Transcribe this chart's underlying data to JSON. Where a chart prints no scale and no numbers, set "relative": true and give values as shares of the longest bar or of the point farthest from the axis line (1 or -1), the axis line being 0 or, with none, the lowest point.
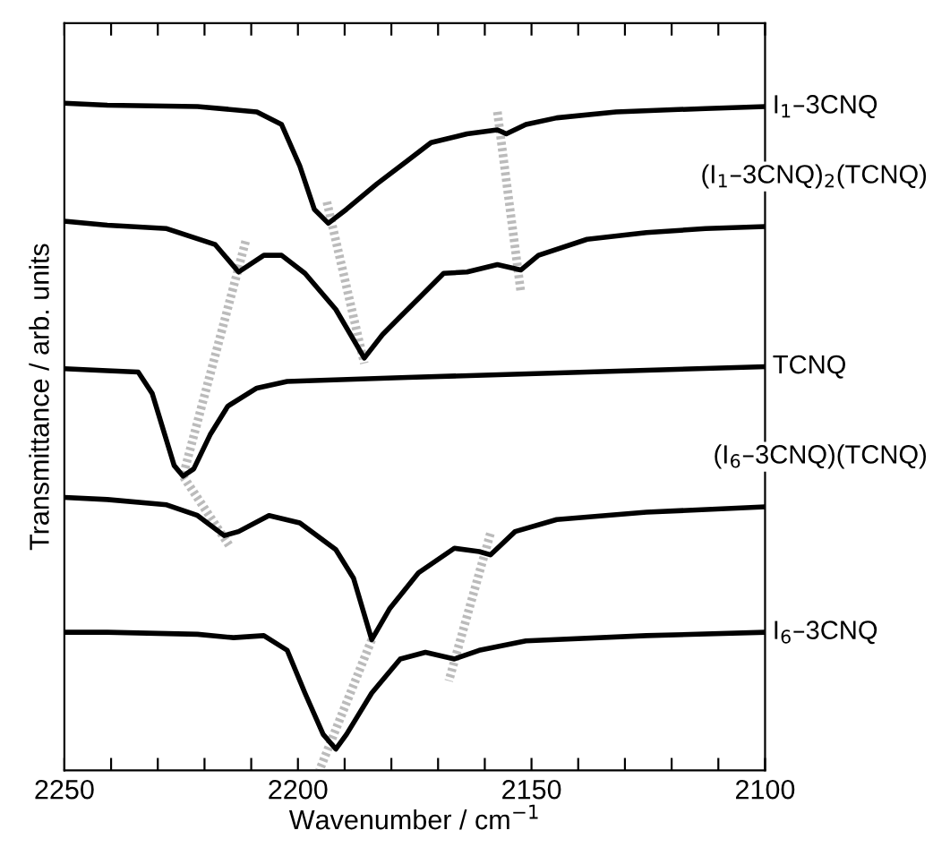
{
  "chart_data": {
    "type": "line",
    "relative": true,
    "xlabel": "Wavenumber / cm$^{−1}$",
    "ylabel": "Transmittance / arb. units",
    "xlim": [
      2250,
      2100
    ],
    "xticks": [
      2250,
      {
        "value": 2240,
        "label": null
      },
      {
        "value": 2230,
        "label": null
      },
      {
        "value": 2220,
        "label": null
      },
      {
        "value": 2210,
        "label": null
      },
      2200,
      {
        "value": 2190,
        "label": null
      },
      {
        "value": 2180,
        "label": null
      },
      {
        "value": 2170,
        "label": null
      },
      {
        "value": 2160,
        "label": null
      },
      2150,
      {
        "value": 2140,
        "label": null
      },
      {
        "value": 2130,
        "label": null
      },
      {
        "value": 2120,
        "label": null
      },
      {
        "value": 2110,
        "label": null
      },
      2100
    ],
    "tick_labels": "x",
    "grid": false,
    "marker": "none",
    "line_style": "solid",
    "series": [
      {
        "name": "I$_{1}$–3CNQ",
        "color": "#000000",
        "x": [
          2250,
          2240.8,
          2221.5,
          2208.8,
          2203.5,
          2199.6,
          2196.5,
          2193.5,
          2189.6,
          2183.1,
          2176.5,
          2171.5,
          2163.8,
          2157.3,
          2155.4,
          2151.2,
          2144.6,
          2131.9,
          2112.7,
          2100
        ],
        "values": [
          1.0,
          0.997,
          0.995,
          0.987,
          0.968,
          0.906,
          0.841,
          0.82,
          0.841,
          0.879,
          0.914,
          0.941,
          0.954,
          0.96,
          0.954,
          0.968,
          0.978,
          0.987,
          0.992,
          0.995
        ]
      },
      {
        "name": "(I$_{1}$–3CNQ)$_{2}$(TCNQ)",
        "color": "#000000",
        "x": [
          2250,
          2240.8,
          2228.1,
          2217.7,
          2212.7,
          2207.3,
          2203.5,
          2198.5,
          2191.9,
          2185.8,
          2181.9,
          2178.1,
          2174.2,
          2168.8,
          2163.8,
          2157.3,
          2152.3,
          2148.5,
          2138.1,
          2125.4,
          2112.7,
          2100
        ],
        "values": [
          0.823,
          0.817,
          0.812,
          0.788,
          0.747,
          0.772,
          0.772,
          0.745,
          0.691,
          0.618,
          0.653,
          0.68,
          0.707,
          0.745,
          0.747,
          0.758,
          0.75,
          0.772,
          0.796,
          0.806,
          0.812,
          0.815
        ]
      },
      {
        "name": "TCNQ",
        "color": "#000000",
        "x": [
          2250,
          2240.8,
          2234.2,
          2231.2,
          2228.5,
          2226.5,
          2224.6,
          2222.3,
          2218.8,
          2215,
          2208.8,
          2202.3,
          2176.5,
          2138.1,
          2100
        ],
        "values": [
          0.602,
          0.599,
          0.597,
          0.565,
          0.503,
          0.457,
          0.441,
          0.452,
          0.503,
          0.546,
          0.573,
          0.583,
          0.589,
          0.597,
          0.605
        ]
      },
      {
        "name": "(I$_{6}$–3CNQ)(TCNQ)",
        "color": "#000000",
        "x": [
          2250,
          2240.8,
          2228.1,
          2221.5,
          2215.8,
          2212.7,
          2206.2,
          2199.6,
          2191.9,
          2188.1,
          2184.2,
          2180.4,
          2174.2,
          2166.5,
          2161.2,
          2158.8,
          2153.5,
          2144.6,
          2125.4,
          2100
        ],
        "values": [
          0.409,
          0.406,
          0.398,
          0.382,
          0.352,
          0.358,
          0.382,
          0.371,
          0.331,
          0.288,
          0.196,
          0.242,
          0.296,
          0.333,
          0.328,
          0.323,
          0.358,
          0.376,
          0.387,
          0.395
        ]
      },
      {
        "name": "I$_{6}$–3CNQ",
        "color": "#000000",
        "x": [
          2250,
          2240.8,
          2221.5,
          2213.8,
          2207.3,
          2202.3,
          2198.5,
          2194.6,
          2191.9,
          2189.6,
          2184.2,
          2178.1,
          2172.7,
          2166.5,
          2161.2,
          2151.2,
          2125.4,
          2100
        ],
        "values": [
          0.207,
          0.207,
          0.204,
          0.199,
          0.202,
          0.18,
          0.116,
          0.054,
          0.032,
          0.054,
          0.116,
          0.167,
          0.177,
          0.167,
          0.18,
          0.194,
          0.202,
          0.207
        ]
      },
      {
        "color": "#bbbbbb",
        "line_style": "dotted",
        "x": [
          2193.8,
          2185.8
        ],
        "values": [
          0.852,
          0.61
        ]
      },
      {
        "color": "#bbbbbb",
        "line_style": "dotted",
        "x": [
          2157.3,
          2152.3
        ],
        "values": [
          0.987,
          0.718
        ]
      },
      {
        "color": "#bbbbbb",
        "line_style": "dotted",
        "x": [
          2211.2,
          2224.6,
          2214.6
        ],
        "values": [
          0.793,
          0.441,
          0.336
        ]
      },
      {
        "color": "#bbbbbb",
        "line_style": "dotted",
        "x": [
          2158.8,
          2167.7
        ],
        "values": [
          0.355,
          0.134
        ]
      },
      {
        "color": "#bbbbbb",
        "line_style": "dotted",
        "x": [
          2184.2,
          2195.4
        ],
        "values": [
          0.196,
          0.0
        ]
      }
    ]
  }
}
